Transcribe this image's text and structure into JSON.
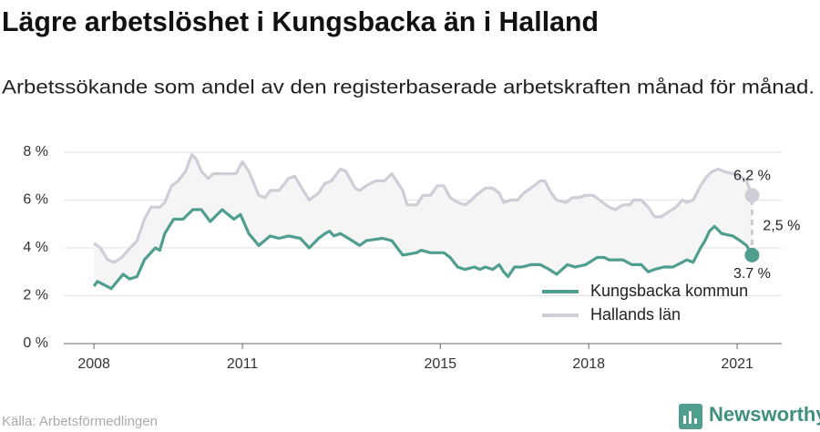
{
  "chart_data": {
    "type": "line",
    "title": "Lägre arbetslöshet i Kungsbacka än i Halland",
    "subtitle": "Arbetssökande som andel av den registerbaserade arbetskraften månad för månad.",
    "xlim": [
      2007.39,
      2021.9
    ],
    "xticks": [
      2008,
      2011,
      2015,
      2018,
      2021
    ],
    "ylim": [
      0,
      8
    ],
    "yticks": [
      {
        "value": 0,
        "label": "0 %"
      },
      {
        "value": 2,
        "label": "2 %"
      },
      {
        "value": 4,
        "label": "4 %"
      },
      {
        "value": 6,
        "label": "6 %"
      },
      {
        "value": 8,
        "label": "8 %"
      }
    ],
    "grid": true,
    "legend": "lower right",
    "series": [
      {
        "name": "Kungsbacka kommun",
        "color": "#4f9e8f",
        "end_label": "3.7 %",
        "x": [
          2008.0,
          2008.07,
          2008.35,
          2008.59,
          2008.72,
          2008.87,
          2009.02,
          2009.24,
          2009.33,
          2009.43,
          2009.61,
          2009.8,
          2010.0,
          2010.17,
          2010.35,
          2010.59,
          2010.83,
          2010.96,
          2011.13,
          2011.33,
          2011.56,
          2011.74,
          2011.93,
          2012.17,
          2012.35,
          2012.54,
          2012.67,
          2012.76,
          2012.85,
          2012.98,
          2013.22,
          2013.37,
          2013.5,
          2013.83,
          2014.02,
          2014.24,
          2014.52,
          2014.61,
          2014.8,
          2015.07,
          2015.2,
          2015.35,
          2015.5,
          2015.69,
          2015.8,
          2015.91,
          2016.06,
          2016.19,
          2016.28,
          2016.37,
          2016.5,
          2016.65,
          2016.83,
          2017.02,
          2017.2,
          2017.35,
          2017.57,
          2017.72,
          2017.94,
          2018.17,
          2018.31,
          2018.41,
          2018.69,
          2018.87,
          2019.06,
          2019.2,
          2019.33,
          2019.52,
          2019.7,
          2019.89,
          2019.98,
          2020.11,
          2020.26,
          2020.35,
          2020.44,
          2020.54,
          2020.69,
          2020.91,
          2021.06,
          2021.19,
          2021.3
        ],
        "values": [
          2.4,
          2.6,
          2.3,
          2.9,
          2.7,
          2.8,
          3.5,
          4.0,
          3.9,
          4.6,
          5.2,
          5.2,
          5.6,
          5.6,
          5.1,
          5.6,
          5.2,
          5.4,
          4.6,
          4.1,
          4.5,
          4.4,
          4.5,
          4.4,
          4.0,
          4.4,
          4.6,
          4.7,
          4.5,
          4.6,
          4.3,
          4.1,
          4.3,
          4.4,
          4.3,
          3.7,
          3.8,
          3.9,
          3.8,
          3.8,
          3.6,
          3.2,
          3.1,
          3.2,
          3.1,
          3.2,
          3.1,
          3.3,
          3.0,
          2.8,
          3.2,
          3.2,
          3.3,
          3.3,
          3.1,
          2.9,
          3.3,
          3.2,
          3.3,
          3.6,
          3.6,
          3.5,
          3.5,
          3.3,
          3.3,
          3.0,
          3.1,
          3.2,
          3.2,
          3.4,
          3.5,
          3.4,
          4.0,
          4.3,
          4.7,
          4.9,
          4.6,
          4.5,
          4.3,
          4.1,
          3.7
        ]
      },
      {
        "name": "Hallands län",
        "color": "#cfcdd6",
        "end_label": "6,2 %",
        "x": [
          2008.0,
          2008.13,
          2008.28,
          2008.41,
          2008.56,
          2008.69,
          2008.87,
          2009.02,
          2009.15,
          2009.33,
          2009.43,
          2009.57,
          2009.7,
          2009.85,
          2009.98,
          2010.07,
          2010.17,
          2010.31,
          2010.41,
          2010.72,
          2010.87,
          2011.0,
          2011.13,
          2011.33,
          2011.46,
          2011.56,
          2011.74,
          2011.93,
          2012.06,
          2012.17,
          2012.35,
          2012.54,
          2012.67,
          2012.8,
          2012.98,
          2013.09,
          2013.28,
          2013.37,
          2013.5,
          2013.69,
          2013.87,
          2014.02,
          2014.24,
          2014.33,
          2014.52,
          2014.65,
          2014.8,
          2014.94,
          2015.07,
          2015.2,
          2015.35,
          2015.5,
          2015.63,
          2015.72,
          2015.91,
          2016.06,
          2016.19,
          2016.28,
          2016.43,
          2016.56,
          2016.69,
          2016.83,
          2017.02,
          2017.11,
          2017.24,
          2017.35,
          2017.54,
          2017.67,
          2017.8,
          2017.94,
          2018.09,
          2018.22,
          2018.41,
          2018.54,
          2018.69,
          2018.83,
          2018.91,
          2019.06,
          2019.2,
          2019.33,
          2019.46,
          2019.61,
          2019.76,
          2019.89,
          2019.98,
          2020.11,
          2020.26,
          2020.39,
          2020.5,
          2020.63,
          2020.72,
          2020.91,
          2021.06,
          2021.19,
          2021.3
        ],
        "values": [
          4.2,
          4.0,
          3.5,
          3.4,
          3.6,
          3.9,
          4.3,
          5.2,
          5.7,
          5.7,
          5.9,
          6.6,
          6.8,
          7.2,
          7.9,
          7.7,
          7.2,
          6.9,
          7.1,
          7.1,
          7.1,
          7.6,
          7.2,
          6.2,
          6.1,
          6.4,
          6.4,
          6.9,
          7.0,
          6.6,
          6.0,
          6.3,
          6.7,
          6.8,
          7.3,
          7.2,
          6.5,
          6.4,
          6.6,
          6.8,
          6.8,
          7.1,
          6.4,
          5.8,
          5.8,
          6.2,
          6.2,
          6.6,
          6.6,
          6.1,
          5.9,
          5.8,
          6.0,
          6.2,
          6.5,
          6.5,
          6.3,
          5.9,
          6.0,
          6.0,
          6.3,
          6.5,
          6.8,
          6.8,
          6.3,
          6.0,
          5.9,
          6.1,
          6.1,
          6.2,
          6.2,
          6.0,
          5.7,
          5.6,
          5.8,
          5.8,
          6.0,
          6.0,
          5.7,
          5.3,
          5.3,
          5.5,
          5.7,
          6.0,
          5.9,
          6.0,
          6.6,
          7.0,
          7.2,
          7.3,
          7.2,
          7.1,
          7.0,
          6.8,
          6.2
        ]
      }
    ],
    "gap": {
      "value": 2.5,
      "label": "2,5 %"
    }
  },
  "source": "Källa: Arbetsförmedlingen",
  "brand": "Newsworthy"
}
